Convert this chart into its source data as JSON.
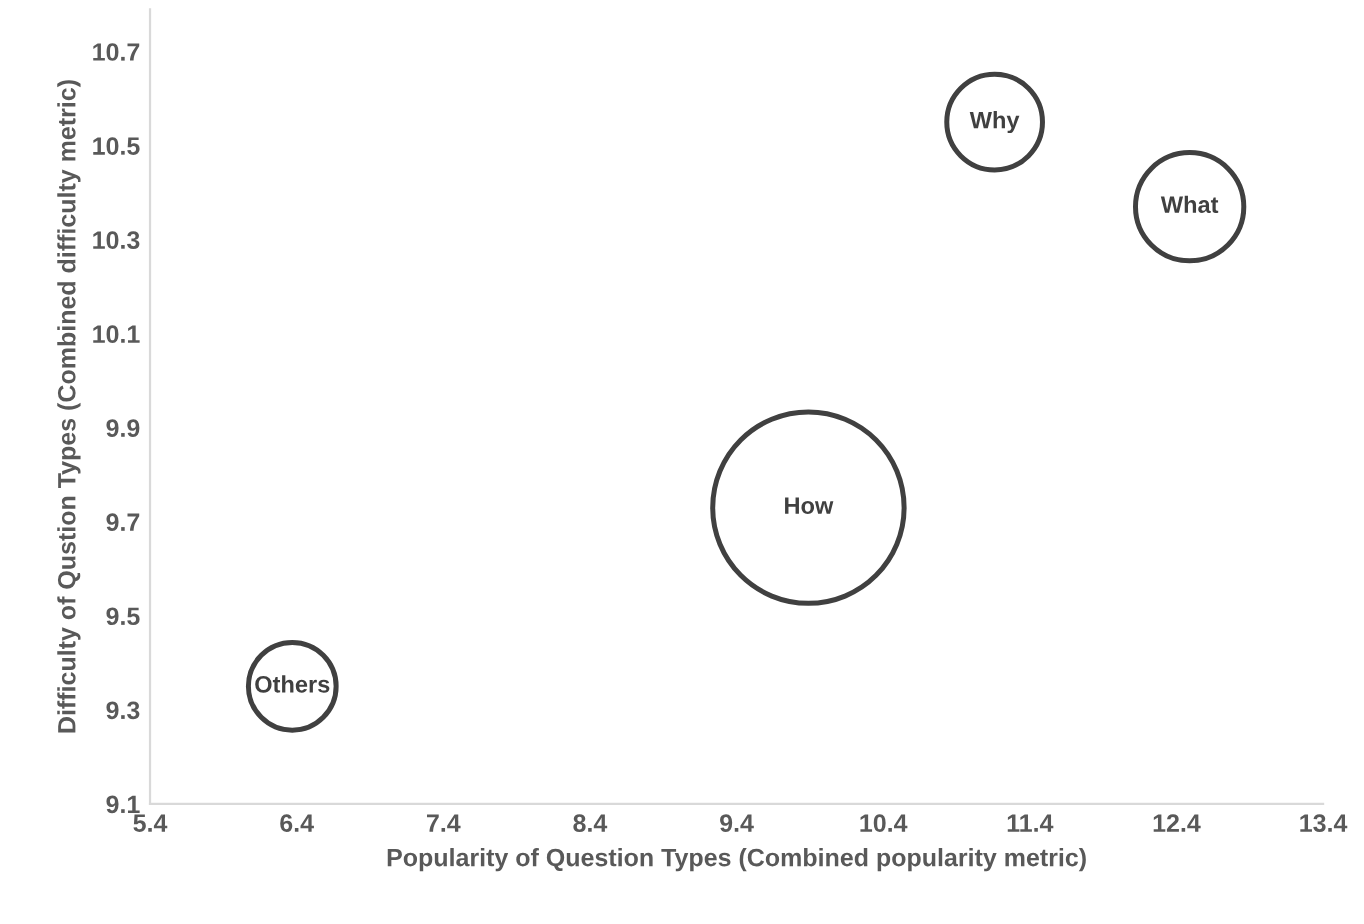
{
  "chart_data": {
    "type": "bubble",
    "xlabel": "Popularity of Question Types (Combined popularity metric)",
    "ylabel": "Difficulty of Qustion Types (Combined difficulty metric)",
    "series": [
      {
        "color": "#404040",
        "x": [
          11.16,
          12.49,
          9.89,
          6.37
        ],
        "values": [
          10.55,
          10.37,
          9.73,
          9.35
        ],
        "sizes": [
          0.25,
          0.32,
          1,
          0.21
        ]
      }
    ],
    "annotations": [
      {
        "text": "Why",
        "x": 11.16,
        "y": 10.55
      },
      {
        "text": "What",
        "x": 12.49,
        "y": 10.37
      },
      {
        "text": "How",
        "x": 9.89,
        "y": 9.73
      },
      {
        "text": "Others",
        "x": 6.37,
        "y": 9.35
      }
    ],
    "xlim": [
      5.4,
      13.4
    ],
    "xticks": [
      5.4,
      6.4,
      7.4,
      8.4,
      9.4,
      10.4,
      11.4,
      12.4,
      13.4
    ],
    "ylim": [
      9.1,
      10.79
    ],
    "yticks": [
      9.1,
      9.3,
      9.5,
      9.7,
      9.9,
      10.1,
      10.3,
      10.5,
      10.7
    ],
    "grid": false,
    "legend": false
  }
}
